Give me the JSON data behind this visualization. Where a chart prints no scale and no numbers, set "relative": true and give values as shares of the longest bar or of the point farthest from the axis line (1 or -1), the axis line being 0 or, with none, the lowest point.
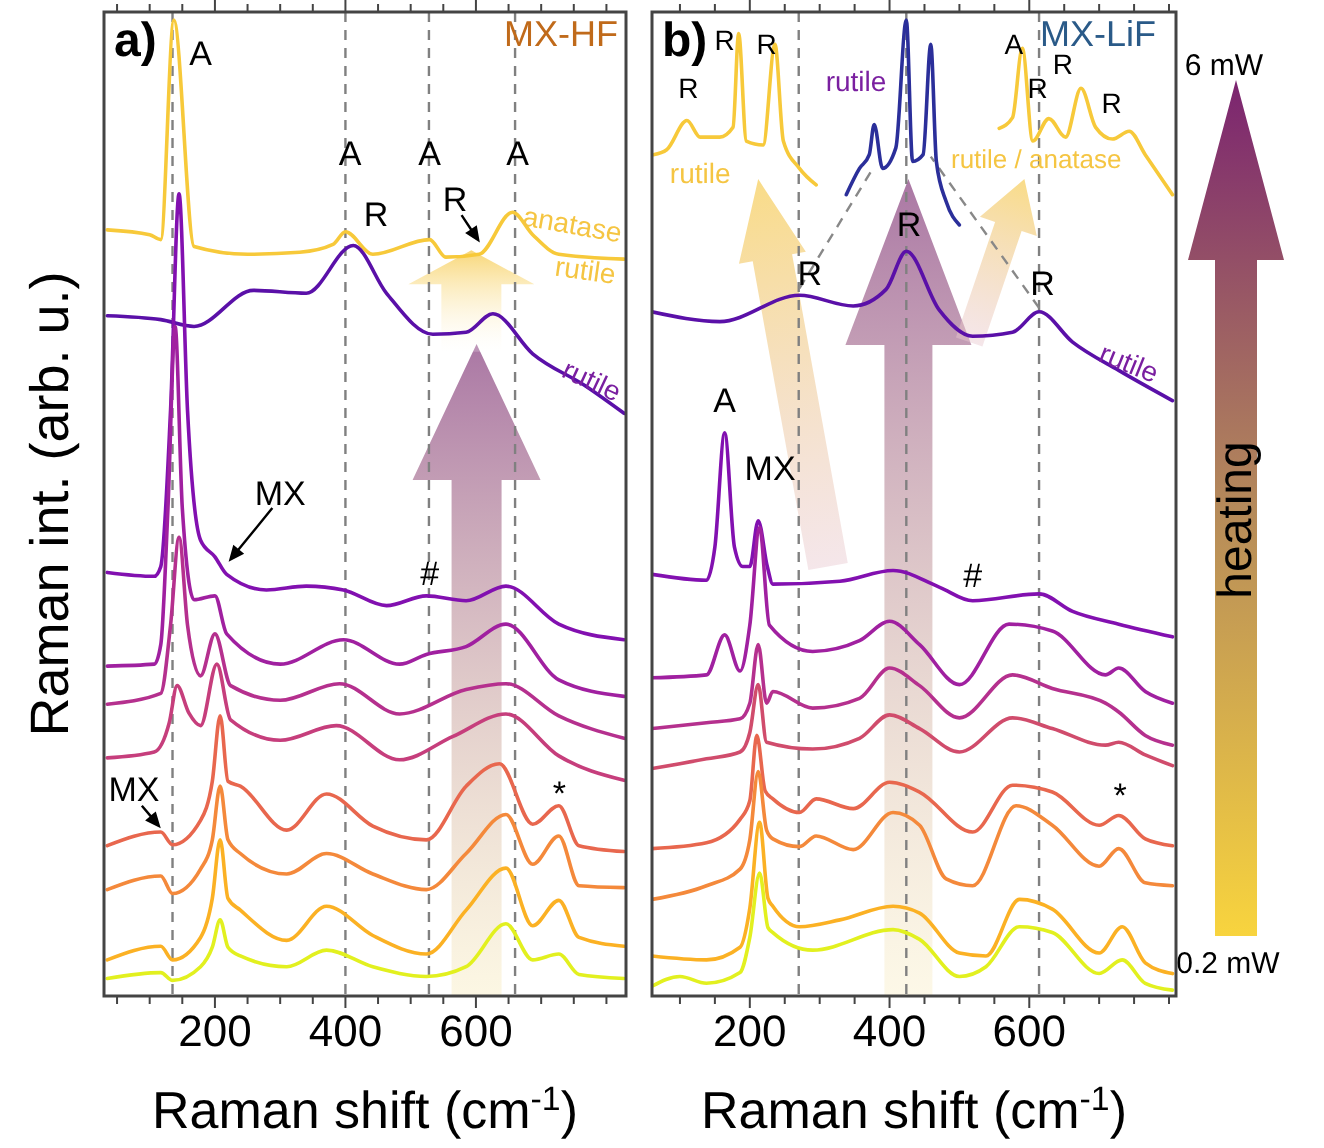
{
  "chart_data": [
    {
      "type": "line",
      "title": "a)",
      "subtitle": "MX-HF",
      "xlabel": "Raman shift (cm$^{-1}$)",
      "ylabel": "Raman int. (arb. u.)",
      "relative": true,
      "xlim": [
        30,
        830
      ],
      "xticks": [
        {
          "value": 50,
          "label": null
        },
        {
          "value": 100,
          "label": null
        },
        {
          "value": 150,
          "label": null
        },
        200,
        {
          "value": 250,
          "label": null
        },
        {
          "value": 300,
          "label": null
        },
        {
          "value": 350,
          "label": null
        },
        400,
        {
          "value": 450,
          "label": null
        },
        {
          "value": 500,
          "label": null
        },
        {
          "value": 550,
          "label": null
        },
        600,
        {
          "value": 650,
          "label": null
        },
        {
          "value": 700,
          "label": null
        },
        {
          "value": 750,
          "label": null
        },
        {
          "value": 800,
          "label": null
        }
      ],
      "ref_lines": [
        {
          "axis": "x",
          "value": 135,
          "line_style": "dashed",
          "color": "#808080"
        },
        {
          "axis": "x",
          "value": 400,
          "line_style": "dashed",
          "color": "#808080"
        },
        {
          "axis": "x",
          "value": 528,
          "line_style": "dashed",
          "color": "#808080"
        },
        {
          "axis": "x",
          "value": 660,
          "line_style": "dashed",
          "color": "#808080"
        }
      ],
      "series": [
        {
          "color": "#f7c93a",
          "x": [
            35,
            100,
            117,
            137,
            168,
            250,
            330,
            381,
            400,
            442,
            529,
            554,
            605,
            656,
            687,
            727,
            827
          ],
          "values": [
            0.785,
            0.78,
            0.775,
            1.0,
            0.768,
            0.76,
            0.762,
            0.77,
            0.783,
            0.76,
            0.775,
            0.757,
            0.76,
            0.803,
            0.78,
            0.76,
            0.755
          ]
        },
        {
          "color": "#5a10a8",
          "x": [
            35,
            117,
            168,
            259,
            340,
            412,
            463,
            534,
            585,
            626,
            687,
            768,
            827
          ],
          "values": [
            0.697,
            0.693,
            0.686,
            0.723,
            0.72,
            0.769,
            0.72,
            0.678,
            0.68,
            0.699,
            0.658,
            0.625,
            0.597
          ]
        },
        {
          "color": "#8210b0",
          "x": [
            35,
            107,
            117,
            132,
            145,
            158,
            178,
            200,
            218,
            279,
            340,
            397,
            463,
            524,
            585,
            646,
            727,
            827
          ],
          "values": [
            0.434,
            0.43,
            0.44,
            0.6,
            0.822,
            0.6,
            0.467,
            0.45,
            0.432,
            0.416,
            0.42,
            0.416,
            0.4,
            0.41,
            0.405,
            0.42,
            0.381,
            0.365
          ]
        },
        {
          "color": "#a020a0",
          "x": [
            35,
            107,
            117,
            128,
            139,
            150,
            168,
            200,
            218,
            300,
            397,
            483,
            524,
            585,
            646,
            727,
            827
          ],
          "values": [
            0.338,
            0.34,
            0.36,
            0.5,
            0.686,
            0.5,
            0.406,
            0.41,
            0.371,
            0.34,
            0.365,
            0.34,
            0.35,
            0.358,
            0.381,
            0.324,
            0.307
          ]
        },
        {
          "color": "#b5308e",
          "x": [
            35,
            117,
            132,
            145,
            158,
            178,
            200,
            224,
            300,
            391,
            483,
            585,
            646,
            727,
            827
          ],
          "values": [
            0.299,
            0.31,
            0.38,
            0.47,
            0.38,
            0.328,
            0.371,
            0.318,
            0.303,
            0.32,
            0.289,
            0.314,
            0.32,
            0.287,
            0.264
          ]
        },
        {
          "color": "#c63e7c",
          "x": [
            35,
            107,
            130,
            142,
            160,
            178,
            203,
            224,
            300,
            386,
            483,
            565,
            646,
            727,
            827
          ],
          "values": [
            0.244,
            0.25,
            0.28,
            0.318,
            0.29,
            0.277,
            0.34,
            0.283,
            0.262,
            0.277,
            0.242,
            0.266,
            0.289,
            0.246,
            0.221
          ]
        },
        {
          "color": "#e8674e",
          "x": [
            35,
            117,
            135,
            178,
            196,
            208,
            220,
            239,
            310,
            371,
            442,
            524,
            585,
            636,
            687,
            727,
            758,
            827
          ],
          "values": [
            0.154,
            0.168,
            0.155,
            0.18,
            0.22,
            0.287,
            0.22,
            0.215,
            0.17,
            0.207,
            0.174,
            0.16,
            0.215,
            0.238,
            0.176,
            0.195,
            0.154,
            0.148
          ]
        },
        {
          "color": "#f4893b",
          "x": [
            35,
            117,
            135,
            178,
            196,
            208,
            220,
            239,
            310,
            371,
            442,
            524,
            585,
            646,
            687,
            727,
            758,
            827
          ],
          "values": [
            0.109,
            0.123,
            0.105,
            0.13,
            0.16,
            0.215,
            0.16,
            0.146,
            0.125,
            0.146,
            0.125,
            0.109,
            0.146,
            0.186,
            0.135,
            0.164,
            0.113,
            0.111
          ]
        },
        {
          "color": "#fbb124",
          "x": [
            35,
            117,
            135,
            178,
            196,
            208,
            220,
            239,
            310,
            371,
            442,
            524,
            585,
            646,
            687,
            727,
            758,
            827
          ],
          "values": [
            0.037,
            0.051,
            0.037,
            0.06,
            0.1,
            0.16,
            0.1,
            0.088,
            0.057,
            0.092,
            0.062,
            0.043,
            0.088,
            0.131,
            0.072,
            0.098,
            0.06,
            0.051
          ]
        },
        {
          "color": "#e2f01f",
          "x": [
            35,
            117,
            135,
            178,
            196,
            208,
            220,
            239,
            310,
            371,
            442,
            524,
            585,
            646,
            687,
            727,
            758,
            827
          ],
          "values": [
            0.018,
            0.024,
            0.016,
            0.03,
            0.05,
            0.078,
            0.05,
            0.041,
            0.03,
            0.047,
            0.03,
            0.02,
            0.03,
            0.074,
            0.037,
            0.043,
            0.022,
            0.018
          ]
        }
      ],
      "annotations": [
        "A",
        "A",
        "A",
        "A",
        "R",
        "R",
        "anatase",
        "rutile",
        "rutile",
        "MX",
        "#",
        "MX",
        "*"
      ]
    },
    {
      "type": "line",
      "title": "b)",
      "subtitle": "MX-LiF",
      "xlabel": "Raman shift (cm$^{-1}$)",
      "relative": true,
      "xlim": [
        60,
        810
      ],
      "xticks": [
        {
          "value": 100,
          "label": null
        },
        {
          "value": 150,
          "label": null
        },
        200,
        {
          "value": 250,
          "label": null
        },
        {
          "value": 300,
          "label": null
        },
        {
          "value": 350,
          "label": null
        },
        400,
        {
          "value": 450,
          "label": null
        },
        {
          "value": 500,
          "label": null
        },
        {
          "value": 550,
          "label": null
        },
        600,
        {
          "value": 650,
          "label": null
        },
        {
          "value": 700,
          "label": null
        },
        {
          "value": 750,
          "label": null
        },
        {
          "value": 800,
          "label": null
        }
      ],
      "ref_lines": [
        {
          "axis": "x",
          "value": 270,
          "line_style": "dashed",
          "color": "#808080"
        },
        {
          "axis": "x",
          "value": 424,
          "line_style": "dashed",
          "color": "#808080"
        },
        {
          "axis": "x",
          "value": 614,
          "line_style": "dashed",
          "color": "#808080"
        }
      ],
      "series": [
        {
          "color": "#5a10a8",
          "x": [
            60,
            157,
            271,
            348,
            395,
            424,
            471,
            519,
            576,
            614,
            662,
            728,
            805
          ],
          "values": [
            0.701,
            0.691,
            0.718,
            0.707,
            0.724,
            0.763,
            0.703,
            0.676,
            0.68,
            0.701,
            0.67,
            0.641,
            0.61
          ]
        },
        {
          "color": "#f7c93a",
          "x": [
            62,
            81,
            110,
            129,
            157,
            176,
            184,
            195,
            219,
            236,
            248,
            271,
            295
          ],
          "values": [
            0.862,
            0.867,
            0.897,
            0.88,
            0.88,
            0.89,
            0.986,
            0.876,
            0.872,
            0.975,
            0.876,
            0.848,
            0.831
          ]
        },
        {
          "color": "#2b2f9a",
          "x": [
            338,
            357,
            371,
            378,
            390,
            409,
            424,
            433,
            448,
            459,
            467,
            481,
            500
          ],
          "values": [
            0.821,
            0.848,
            0.862,
            0.893,
            0.848,
            0.869,
            1.0,
            0.855,
            0.862,
            0.975,
            0.855,
            0.814,
            0.79
          ]
        },
        {
          "color": "#f7c93a",
          "x": [
            557,
            576,
            590,
            605,
            628,
            652,
            674,
            695,
            719,
            743,
            766,
            805
          ],
          "values": [
            0.889,
            0.9,
            0.971,
            0.876,
            0.899,
            0.88,
            0.93,
            0.89,
            0.878,
            0.886,
            0.862,
            0.821
          ]
        },
        {
          "color": "#8210b0",
          "x": [
            60,
            138,
            150,
            164,
            178,
            190,
            200,
            212,
            225,
            233,
            329,
            405,
            471,
            519,
            614,
            662,
            728,
            805
          ],
          "values": [
            0.432,
            0.426,
            0.46,
            0.577,
            0.46,
            0.44,
            0.44,
            0.487,
            0.44,
            0.422,
            0.425,
            0.436,
            0.419,
            0.405,
            0.412,
            0.394,
            0.381,
            0.368
          ]
        },
        {
          "color": "#a020a0",
          "x": [
            60,
            138,
            164,
            186,
            200,
            214,
            228,
            290,
            357,
            400,
            443,
            500,
            571,
            633,
            709,
            728,
            766,
            805
          ],
          "values": [
            0.326,
            0.329,
            0.37,
            0.333,
            0.38,
            0.48,
            0.38,
            0.353,
            0.364,
            0.384,
            0.36,
            0.319,
            0.381,
            0.374,
            0.329,
            0.336,
            0.312,
            0.3
          ]
        },
        {
          "color": "#b5308e",
          "x": [
            60,
            138,
            186,
            200,
            212,
            224,
            233,
            290,
            357,
            400,
            443,
            500,
            576,
            633,
            709,
            728,
            766,
            805
          ],
          "values": [
            0.274,
            0.28,
            0.284,
            0.3,
            0.36,
            0.3,
            0.312,
            0.295,
            0.305,
            0.336,
            0.318,
            0.285,
            0.329,
            0.315,
            0.3,
            0.291,
            0.267,
            0.257
          ]
        },
        {
          "color": "#d04c6c",
          "x": [
            60,
            138,
            186,
            200,
            212,
            224,
            290,
            357,
            400,
            443,
            500,
            576,
            633,
            709,
            728,
            766,
            805
          ],
          "values": [
            0.233,
            0.243,
            0.25,
            0.27,
            0.319,
            0.26,
            0.253,
            0.264,
            0.288,
            0.274,
            0.25,
            0.285,
            0.274,
            0.257,
            0.26,
            0.247,
            0.236
          ]
        },
        {
          "color": "#e8674e",
          "x": [
            60,
            138,
            186,
            200,
            210,
            222,
            233,
            271,
            295,
            348,
            400,
            443,
            519,
            576,
            633,
            700,
            728,
            766,
            805
          ],
          "values": [
            0.151,
            0.157,
            0.181,
            0.2,
            0.267,
            0.21,
            0.202,
            0.188,
            0.202,
            0.192,
            0.219,
            0.209,
            0.168,
            0.216,
            0.209,
            0.175,
            0.185,
            0.161,
            0.154
          ]
        },
        {
          "color": "#f4893b",
          "x": [
            60,
            138,
            186,
            200,
            212,
            224,
            233,
            271,
            295,
            348,
            405,
            443,
            481,
            519,
            581,
            633,
            700,
            728,
            766,
            805
          ],
          "values": [
            0.099,
            0.113,
            0.13,
            0.16,
            0.23,
            0.17,
            0.161,
            0.153,
            0.164,
            0.15,
            0.188,
            0.175,
            0.12,
            0.113,
            0.195,
            0.175,
            0.133,
            0.151,
            0.116,
            0.113
          ]
        },
        {
          "color": "#fbb124",
          "x": [
            60,
            138,
            186,
            200,
            214,
            226,
            233,
            271,
            329,
            405,
            443,
            500,
            538,
            586,
            633,
            700,
            733,
            766,
            805
          ],
          "values": [
            0.041,
            0.037,
            0.05,
            0.09,
            0.178,
            0.1,
            0.092,
            0.071,
            0.078,
            0.092,
            0.085,
            0.044,
            0.041,
            0.099,
            0.089,
            0.044,
            0.071,
            0.034,
            0.023
          ]
        },
        {
          "color": "#e2f01f",
          "x": [
            60,
            100,
            138,
            186,
            200,
            214,
            226,
            233,
            290,
            405,
            443,
            500,
            538,
            586,
            633,
            700,
            733,
            766,
            805
          ],
          "values": [
            0.01,
            0.02,
            0.013,
            0.024,
            0.06,
            0.126,
            0.07,
            0.065,
            0.047,
            0.068,
            0.058,
            0.02,
            0.03,
            0.071,
            0.065,
            0.023,
            0.037,
            0.013,
            0.006
          ]
        }
      ],
      "annotations": [
        "R",
        "R",
        "R",
        "rutile",
        "rutile",
        "A",
        "R",
        "R",
        "R",
        "rutile / anatase",
        "R",
        "R",
        "R",
        "rutile",
        "A",
        "MX",
        "#",
        "*",
        "6 mW",
        "0.2 mW",
        "heating"
      ]
    }
  ]
}
